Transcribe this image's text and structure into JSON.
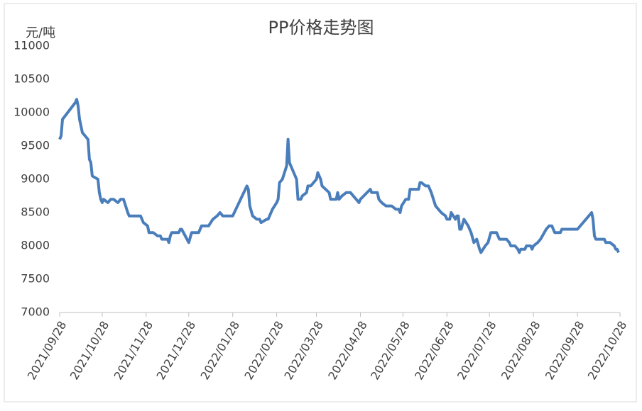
{
  "chart_data": {
    "type": "line",
    "title": "PP价格走势图",
    "y_label": "元/吨",
    "color": "#4a7ebb",
    "x": [
      "2021/09/28",
      "2021/09/29",
      "2021/09/30",
      "2021/10/09",
      "2021/10/10",
      "2021/10/11",
      "2021/10/12",
      "2021/10/14",
      "2021/10/18",
      "2021/10/19",
      "2021/10/20",
      "2021/10/21",
      "2021/10/25",
      "2021/10/26",
      "2021/10/27",
      "2021/10/28",
      "2021/10/29",
      "2021/11/01",
      "2021/11/03",
      "2021/11/05",
      "2021/11/08",
      "2021/11/10",
      "2021/11/12",
      "2021/11/15",
      "2021/11/16",
      "2021/11/24",
      "2021/11/26",
      "2021/11/29",
      "2021/11/30",
      "2021/12/03",
      "2021/12/06",
      "2021/12/08",
      "2021/12/09",
      "2021/12/13",
      "2021/12/14",
      "2021/12/15",
      "2021/12/16",
      "2021/12/21",
      "2021/12/22",
      "2021/12/23",
      "2021/12/28",
      "2021/12/30",
      "2022/01/04",
      "2022/01/06",
      "2022/01/11",
      "2022/01/14",
      "2022/01/17",
      "2022/01/19",
      "2022/01/21",
      "2022/01/28",
      "2022/02/07",
      "2022/02/08",
      "2022/02/09",
      "2022/02/11",
      "2022/02/14",
      "2022/02/16",
      "2022/02/17",
      "2022/02/21",
      "2022/02/22",
      "2022/02/24",
      "2022/02/25",
      "2022/02/28",
      "2022/03/01",
      "2022/03/02",
      "2022/03/04",
      "2022/03/07",
      "2022/03/08",
      "2022/03/09",
      "2022/03/14",
      "2022/03/15",
      "2022/03/17",
      "2022/03/18",
      "2022/03/21",
      "2022/03/22",
      "2022/03/24",
      "2022/03/28",
      "2022/03/29",
      "2022/03/31",
      "2022/04/01",
      "2022/04/06",
      "2022/04/07",
      "2022/04/11",
      "2022/04/12",
      "2022/04/13",
      "2022/04/15",
      "2022/04/18",
      "2022/04/21",
      "2022/04/25",
      "2022/04/27",
      "2022/04/28",
      "2022/05/05",
      "2022/05/06",
      "2022/05/10",
      "2022/05/11",
      "2022/05/13",
      "2022/05/16",
      "2022/05/20",
      "2022/05/23",
      "2022/05/25",
      "2022/05/26",
      "2022/05/27",
      "2022/05/30",
      "2022/06/01",
      "2022/06/02",
      "2022/06/08",
      "2022/06/09",
      "2022/06/10",
      "2022/06/13",
      "2022/06/15",
      "2022/06/17",
      "2022/06/20",
      "2022/06/22",
      "2022/06/24",
      "2022/06/27",
      "2022/06/28",
      "2022/06/30",
      "2022/07/01",
      "2022/07/04",
      "2022/07/05",
      "2022/07/06",
      "2022/07/07",
      "2022/07/08",
      "2022/07/10",
      "2022/07/13",
      "2022/07/15",
      "2022/07/17",
      "2022/07/19",
      "2022/07/21",
      "2022/07/22",
      "2022/07/25",
      "2022/07/27",
      "2022/07/29",
      "2022/08/02",
      "2022/08/04",
      "2022/08/09",
      "2022/08/11",
      "2022/08/12",
      "2022/08/15",
      "2022/08/17",
      "2022/08/18",
      "2022/08/19",
      "2022/08/22",
      "2022/08/23",
      "2022/08/26",
      "2022/08/27",
      "2022/08/28",
      "2022/08/31",
      "2022/09/02",
      "2022/09/06",
      "2022/09/08",
      "2022/09/10",
      "2022/09/11",
      "2022/09/12",
      "2022/09/16",
      "2022/09/17",
      "2022/09/25",
      "2022/09/28",
      "2022/10/06",
      "2022/10/08",
      "2022/10/09",
      "2022/10/10",
      "2022/10/11",
      "2022/10/17",
      "2022/10/18",
      "2022/10/21",
      "2022/10/24",
      "2022/10/25",
      "2022/10/26",
      "2022/10/27"
    ],
    "values": [
      9600,
      9650,
      9900,
      10150,
      10200,
      10100,
      9900,
      9700,
      9600,
      9300,
      9250,
      9050,
      9000,
      8800,
      8700,
      8650,
      8700,
      8650,
      8700,
      8700,
      8650,
      8700,
      8700,
      8500,
      8450,
      8450,
      8350,
      8300,
      8200,
      8200,
      8150,
      8150,
      8100,
      8100,
      8050,
      8150,
      8200,
      8200,
      8250,
      8250,
      8050,
      8200,
      8200,
      8300,
      8300,
      8400,
      8450,
      8500,
      8450,
      8450,
      8900,
      8850,
      8600,
      8450,
      8400,
      8400,
      8350,
      8400,
      8400,
      8500,
      8550,
      8650,
      8700,
      8950,
      9000,
      9200,
      9600,
      9250,
      9000,
      8700,
      8700,
      8750,
      8800,
      8900,
      8900,
      9000,
      9100,
      9000,
      8900,
      8800,
      8700,
      8700,
      8800,
      8700,
      8750,
      8800,
      8800,
      8700,
      8650,
      8700,
      8850,
      8800,
      8800,
      8700,
      8650,
      8600,
      8600,
      8550,
      8550,
      8500,
      8600,
      8700,
      8700,
      8850,
      8850,
      8950,
      8950,
      8900,
      8900,
      8800,
      8600,
      8550,
      8500,
      8450,
      8400,
      8400,
      8500,
      8400,
      8450,
      8450,
      8250,
      8250,
      8400,
      8300,
      8200,
      8050,
      8100,
      7950,
      7900,
      8000,
      8050,
      8200,
      8200,
      8100,
      8100,
      8050,
      8000,
      8000,
      7950,
      7900,
      7950,
      7950,
      8000,
      8000,
      7950,
      8000,
      8050,
      8100,
      8250,
      8300,
      8300,
      8250,
      8200,
      8200,
      8250,
      8250,
      8250,
      8450,
      8500,
      8400,
      8150,
      8100,
      8100,
      8050,
      8050,
      8000,
      7950,
      7950,
      7900
    ],
    "xlim": [
      "2021/09/28",
      "2022/10/28"
    ],
    "xticks": [
      "2021/09/28",
      "2021/10/28",
      "2021/11/28",
      "2021/12/28",
      "2022/01/28",
      "2022/02/28",
      "2022/03/28",
      "2022/04/28",
      "2022/05/28",
      "2022/06/28",
      "2022/07/28",
      "2022/08/28",
      "2022/09/28",
      "2022/10/28"
    ],
    "ylim": [
      7000,
      11000
    ],
    "yticks": [
      7000,
      7500,
      8000,
      8500,
      9000,
      9500,
      10000,
      10500,
      11000
    ]
  }
}
